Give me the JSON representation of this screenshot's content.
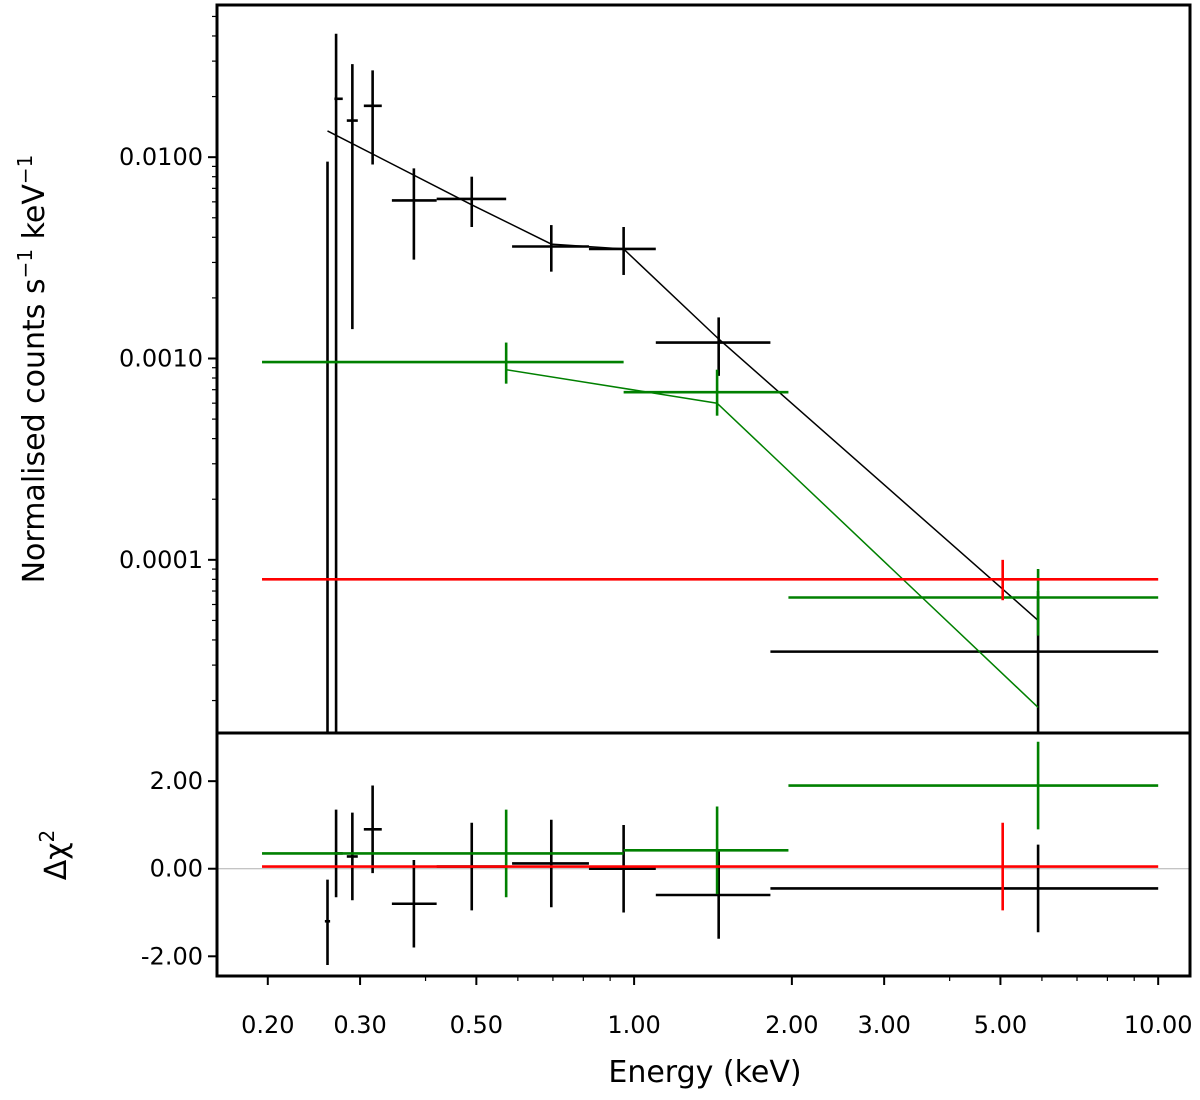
{
  "chart_data": [
    {
      "panel": "spectrum",
      "type": "scatter",
      "ylabel": {
        "prefix": "Normalised counts s",
        "sup1": "−1",
        "mid": " keV",
        "sup2": "−1"
      },
      "yscale": "log",
      "ylim": [
        1.38e-05,
        0.057
      ],
      "yticks": [
        {
          "value": 0.01,
          "label": "0.0100"
        },
        {
          "value": 0.001,
          "label": "0.0010"
        },
        {
          "value": 0.0001,
          "label": "0.0001"
        }
      ],
      "series": [
        {
          "color": "#000000",
          "points": [
            {
              "x": 0.26,
              "xlo": 0.26,
              "xhi": 0.26,
              "y": 1e-05,
              "ylo": 1e-05,
              "yhi": 0.0095
            },
            {
              "x": 0.27,
              "xlo": 0.268,
              "xhi": 0.278,
              "y": 0.0195,
              "ylo": 1e-05,
              "yhi": 0.041
            },
            {
              "x": 0.29,
              "xlo": 0.283,
              "xhi": 0.297,
              "y": 0.0152,
              "ylo": 0.0014,
              "yhi": 0.029
            },
            {
              "x": 0.317,
              "xlo": 0.305,
              "xhi": 0.33,
              "y": 0.018,
              "ylo": 0.0092,
              "yhi": 0.027
            },
            {
              "x": 0.38,
              "xlo": 0.345,
              "xhi": 0.42,
              "y": 0.0061,
              "ylo": 0.0031,
              "yhi": 0.0088
            },
            {
              "x": 0.49,
              "xlo": 0.42,
              "xhi": 0.57,
              "y": 0.0062,
              "ylo": 0.0045,
              "yhi": 0.008
            },
            {
              "x": 0.695,
              "xlo": 0.585,
              "xhi": 0.82,
              "y": 0.0036,
              "ylo": 0.0027,
              "yhi": 0.0046
            },
            {
              "x": 0.955,
              "xlo": 0.82,
              "xhi": 1.1,
              "y": 0.0035,
              "ylo": 0.0026,
              "yhi": 0.0045
            },
            {
              "x": 1.45,
              "xlo": 1.1,
              "xhi": 1.82,
              "y": 0.0012,
              "ylo": 0.00082,
              "yhi": 0.0016
            },
            {
              "x": 5.9,
              "xlo": 1.82,
              "xhi": 10.0,
              "y": 3.5e-05,
              "ylo": 1e-05,
              "yhi": 7e-05
            }
          ],
          "model": [
            {
              "x": 0.26,
              "y": 0.0135
            },
            {
              "x": 0.49,
              "y": 0.0058
            },
            {
              "x": 0.695,
              "y": 0.0037
            },
            {
              "x": 0.955,
              "y": 0.0035
            },
            {
              "x": 1.45,
              "y": 0.00125
            },
            {
              "x": 5.9,
              "y": 5e-05
            }
          ]
        },
        {
          "color": "#008000",
          "points": [
            {
              "x": 0.57,
              "xlo": 0.195,
              "xhi": 0.955,
              "y": 0.00096,
              "ylo": 0.00075,
              "yhi": 0.0012
            },
            {
              "x": 1.44,
              "xlo": 0.955,
              "xhi": 1.97,
              "y": 0.00068,
              "ylo": 0.00052,
              "yhi": 0.00088
            },
            {
              "x": 5.9,
              "xlo": 1.97,
              "xhi": 10.0,
              "y": 6.5e-05,
              "ylo": 4.2e-05,
              "yhi": 9e-05
            }
          ],
          "model": [
            {
              "x": 0.57,
              "y": 0.00088
            },
            {
              "x": 1.44,
              "y": 0.0006
            },
            {
              "x": 5.9,
              "y": 1.85e-05
            }
          ]
        },
        {
          "color": "#ff0000",
          "points": [
            {
              "x": 5.05,
              "xlo": 0.195,
              "xhi": 10.0,
              "y": 8e-05,
              "ylo": 6.3e-05,
              "yhi": 0.0001
            }
          ],
          "model": []
        }
      ]
    },
    {
      "panel": "residuals",
      "type": "scatter",
      "ylabel": {
        "prefix": "Δχ",
        "sup1": "2"
      },
      "xlabel": "Energy (keV)",
      "xscale": "log",
      "xlim": [
        0.16,
        11.5
      ],
      "xticks": [
        {
          "value": 0.2,
          "label": "0.20"
        },
        {
          "value": 0.3,
          "label": "0.30"
        },
        {
          "value": 0.5,
          "label": "0.50"
        },
        {
          "value": 1.0,
          "label": "1.00"
        },
        {
          "value": 2.0,
          "label": "2.00"
        },
        {
          "value": 3.0,
          "label": "3.00"
        },
        {
          "value": 5.0,
          "label": "5.00"
        },
        {
          "value": 10.0,
          "label": "10.00"
        }
      ],
      "ylim": [
        -2.45,
        3.1
      ],
      "yticks": [
        {
          "value": 2.0,
          "label": "2.00"
        },
        {
          "value": 0.0,
          "label": "0.00"
        },
        {
          "value": -2.0,
          "label": "-2.00"
        }
      ],
      "zero_line": true,
      "series": [
        {
          "color": "#000000",
          "points": [
            {
              "x": 0.26,
              "xlo": 0.257,
              "xhi": 0.263,
              "y": -1.2,
              "ylo": -2.2,
              "yhi": -0.25
            },
            {
              "x": 0.27,
              "xlo": 0.268,
              "xhi": 0.278,
              "y": 0.35,
              "ylo": -0.65,
              "yhi": 1.35
            },
            {
              "x": 0.29,
              "xlo": 0.283,
              "xhi": 0.297,
              "y": 0.28,
              "ylo": -0.72,
              "yhi": 1.28
            },
            {
              "x": 0.317,
              "xlo": 0.305,
              "xhi": 0.33,
              "y": 0.9,
              "ylo": -0.1,
              "yhi": 1.9
            },
            {
              "x": 0.38,
              "xlo": 0.345,
              "xhi": 0.42,
              "y": -0.8,
              "ylo": -1.8,
              "yhi": 0.2
            },
            {
              "x": 0.49,
              "xlo": 0.42,
              "xhi": 0.57,
              "y": 0.05,
              "ylo": -0.95,
              "yhi": 1.05
            },
            {
              "x": 0.695,
              "xlo": 0.585,
              "xhi": 0.82,
              "y": 0.12,
              "ylo": -0.88,
              "yhi": 1.12
            },
            {
              "x": 0.955,
              "xlo": 0.82,
              "xhi": 1.1,
              "y": 0.0,
              "ylo": -1.0,
              "yhi": 1.0
            },
            {
              "x": 1.45,
              "xlo": 1.1,
              "xhi": 1.82,
              "y": -0.6,
              "ylo": -1.6,
              "yhi": 0.4
            },
            {
              "x": 5.9,
              "xlo": 1.82,
              "xhi": 10.0,
              "y": -0.45,
              "ylo": -1.45,
              "yhi": 0.55
            }
          ]
        },
        {
          "color": "#008000",
          "points": [
            {
              "x": 0.57,
              "xlo": 0.195,
              "xhi": 0.955,
              "y": 0.35,
              "ylo": -0.65,
              "yhi": 1.35
            },
            {
              "x": 1.44,
              "xlo": 0.955,
              "xhi": 1.97,
              "y": 0.42,
              "ylo": -0.58,
              "yhi": 1.42
            },
            {
              "x": 5.9,
              "xlo": 1.97,
              "xhi": 10.0,
              "y": 1.9,
              "ylo": 0.9,
              "yhi": 2.9
            }
          ]
        },
        {
          "color": "#ff0000",
          "points": [
            {
              "x": 5.05,
              "xlo": 0.195,
              "xhi": 10.0,
              "y": 0.05,
              "ylo": -0.95,
              "yhi": 1.05
            }
          ]
        }
      ]
    }
  ]
}
